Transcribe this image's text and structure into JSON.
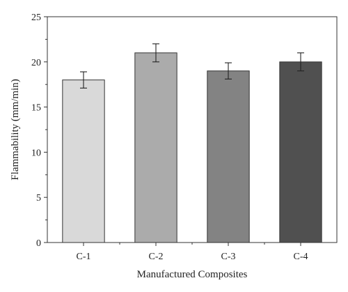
{
  "chart_data": {
    "type": "bar",
    "categories": [
      "C-1",
      "C-2",
      "C-3",
      "C-4"
    ],
    "values": [
      18,
      21,
      19,
      20
    ],
    "errors": [
      0.9,
      1.0,
      0.9,
      1.0
    ],
    "colors": [
      "#d9d9d9",
      "#ababab",
      "#838383",
      "#505050"
    ],
    "xlabel": "Manufactured Composites",
    "ylabel": "Flammability (mm/min)",
    "ylim": [
      0,
      25
    ],
    "yticks": [
      0,
      5,
      10,
      15,
      20,
      25
    ],
    "grid": false
  }
}
